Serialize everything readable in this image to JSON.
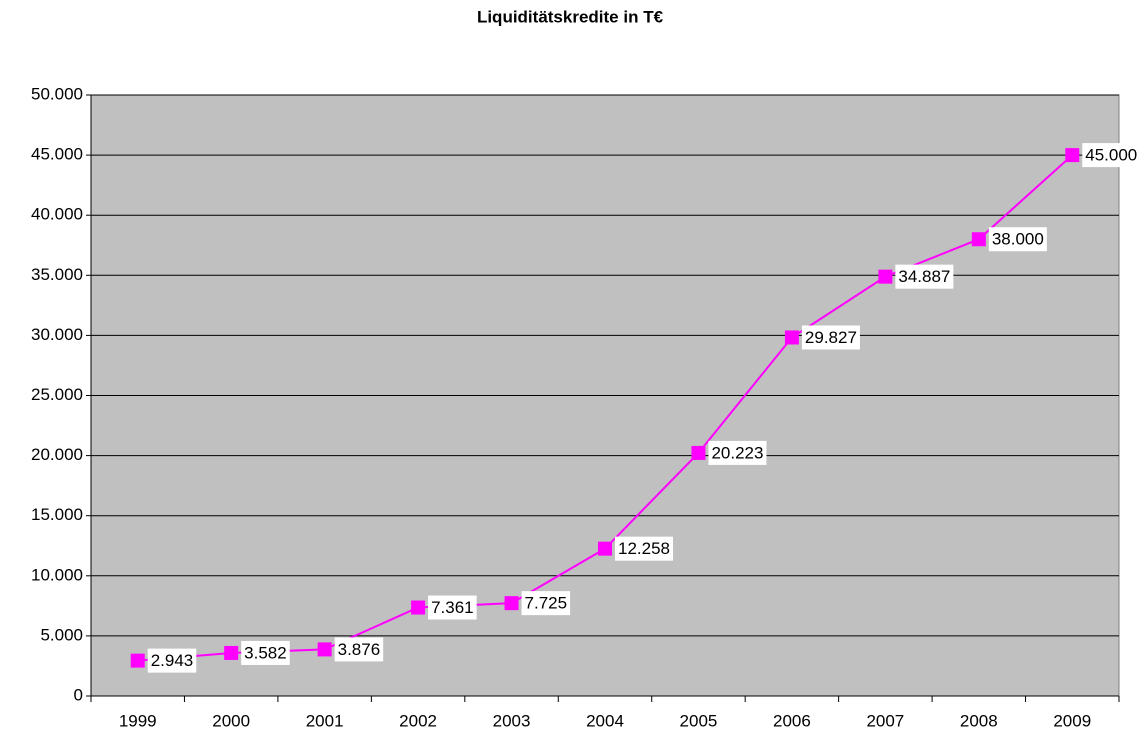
{
  "chart_data": {
    "type": "line",
    "title": "Liquiditätskredite in T€",
    "categories": [
      "1999",
      "2000",
      "2001",
      "2002",
      "2003",
      "2004",
      "2005",
      "2006",
      "2007",
      "2008",
      "2009"
    ],
    "series": [
      {
        "name": "Liquiditätskredite",
        "color": "#ff00ff",
        "values": [
          2943,
          3582,
          3876,
          7361,
          7725,
          12258,
          20223,
          29827,
          34887,
          38000,
          45000
        ],
        "value_labels": [
          "2.943",
          "3.582",
          "3.876",
          "7.361",
          "7.725",
          "12.258",
          "20.223",
          "29.827",
          "34.887",
          "38.000",
          "45.000"
        ]
      }
    ],
    "ylim": [
      0,
      50000
    ],
    "yticks": [
      0,
      {
        "value": 5000,
        "label": "5.000"
      },
      {
        "value": 10000,
        "label": "10.000"
      },
      {
        "value": 15000,
        "label": "15.000"
      },
      {
        "value": 20000,
        "label": "20.000"
      },
      {
        "value": 25000,
        "label": "25.000"
      },
      {
        "value": 30000,
        "label": "30.000"
      },
      {
        "value": 35000,
        "label": "35.000"
      },
      {
        "value": 40000,
        "label": "40.000"
      },
      {
        "value": 45000,
        "label": "45.000"
      },
      {
        "value": 50000,
        "label": "50.000"
      }
    ],
    "grid": true,
    "plot_background": "#c0c0c0"
  }
}
